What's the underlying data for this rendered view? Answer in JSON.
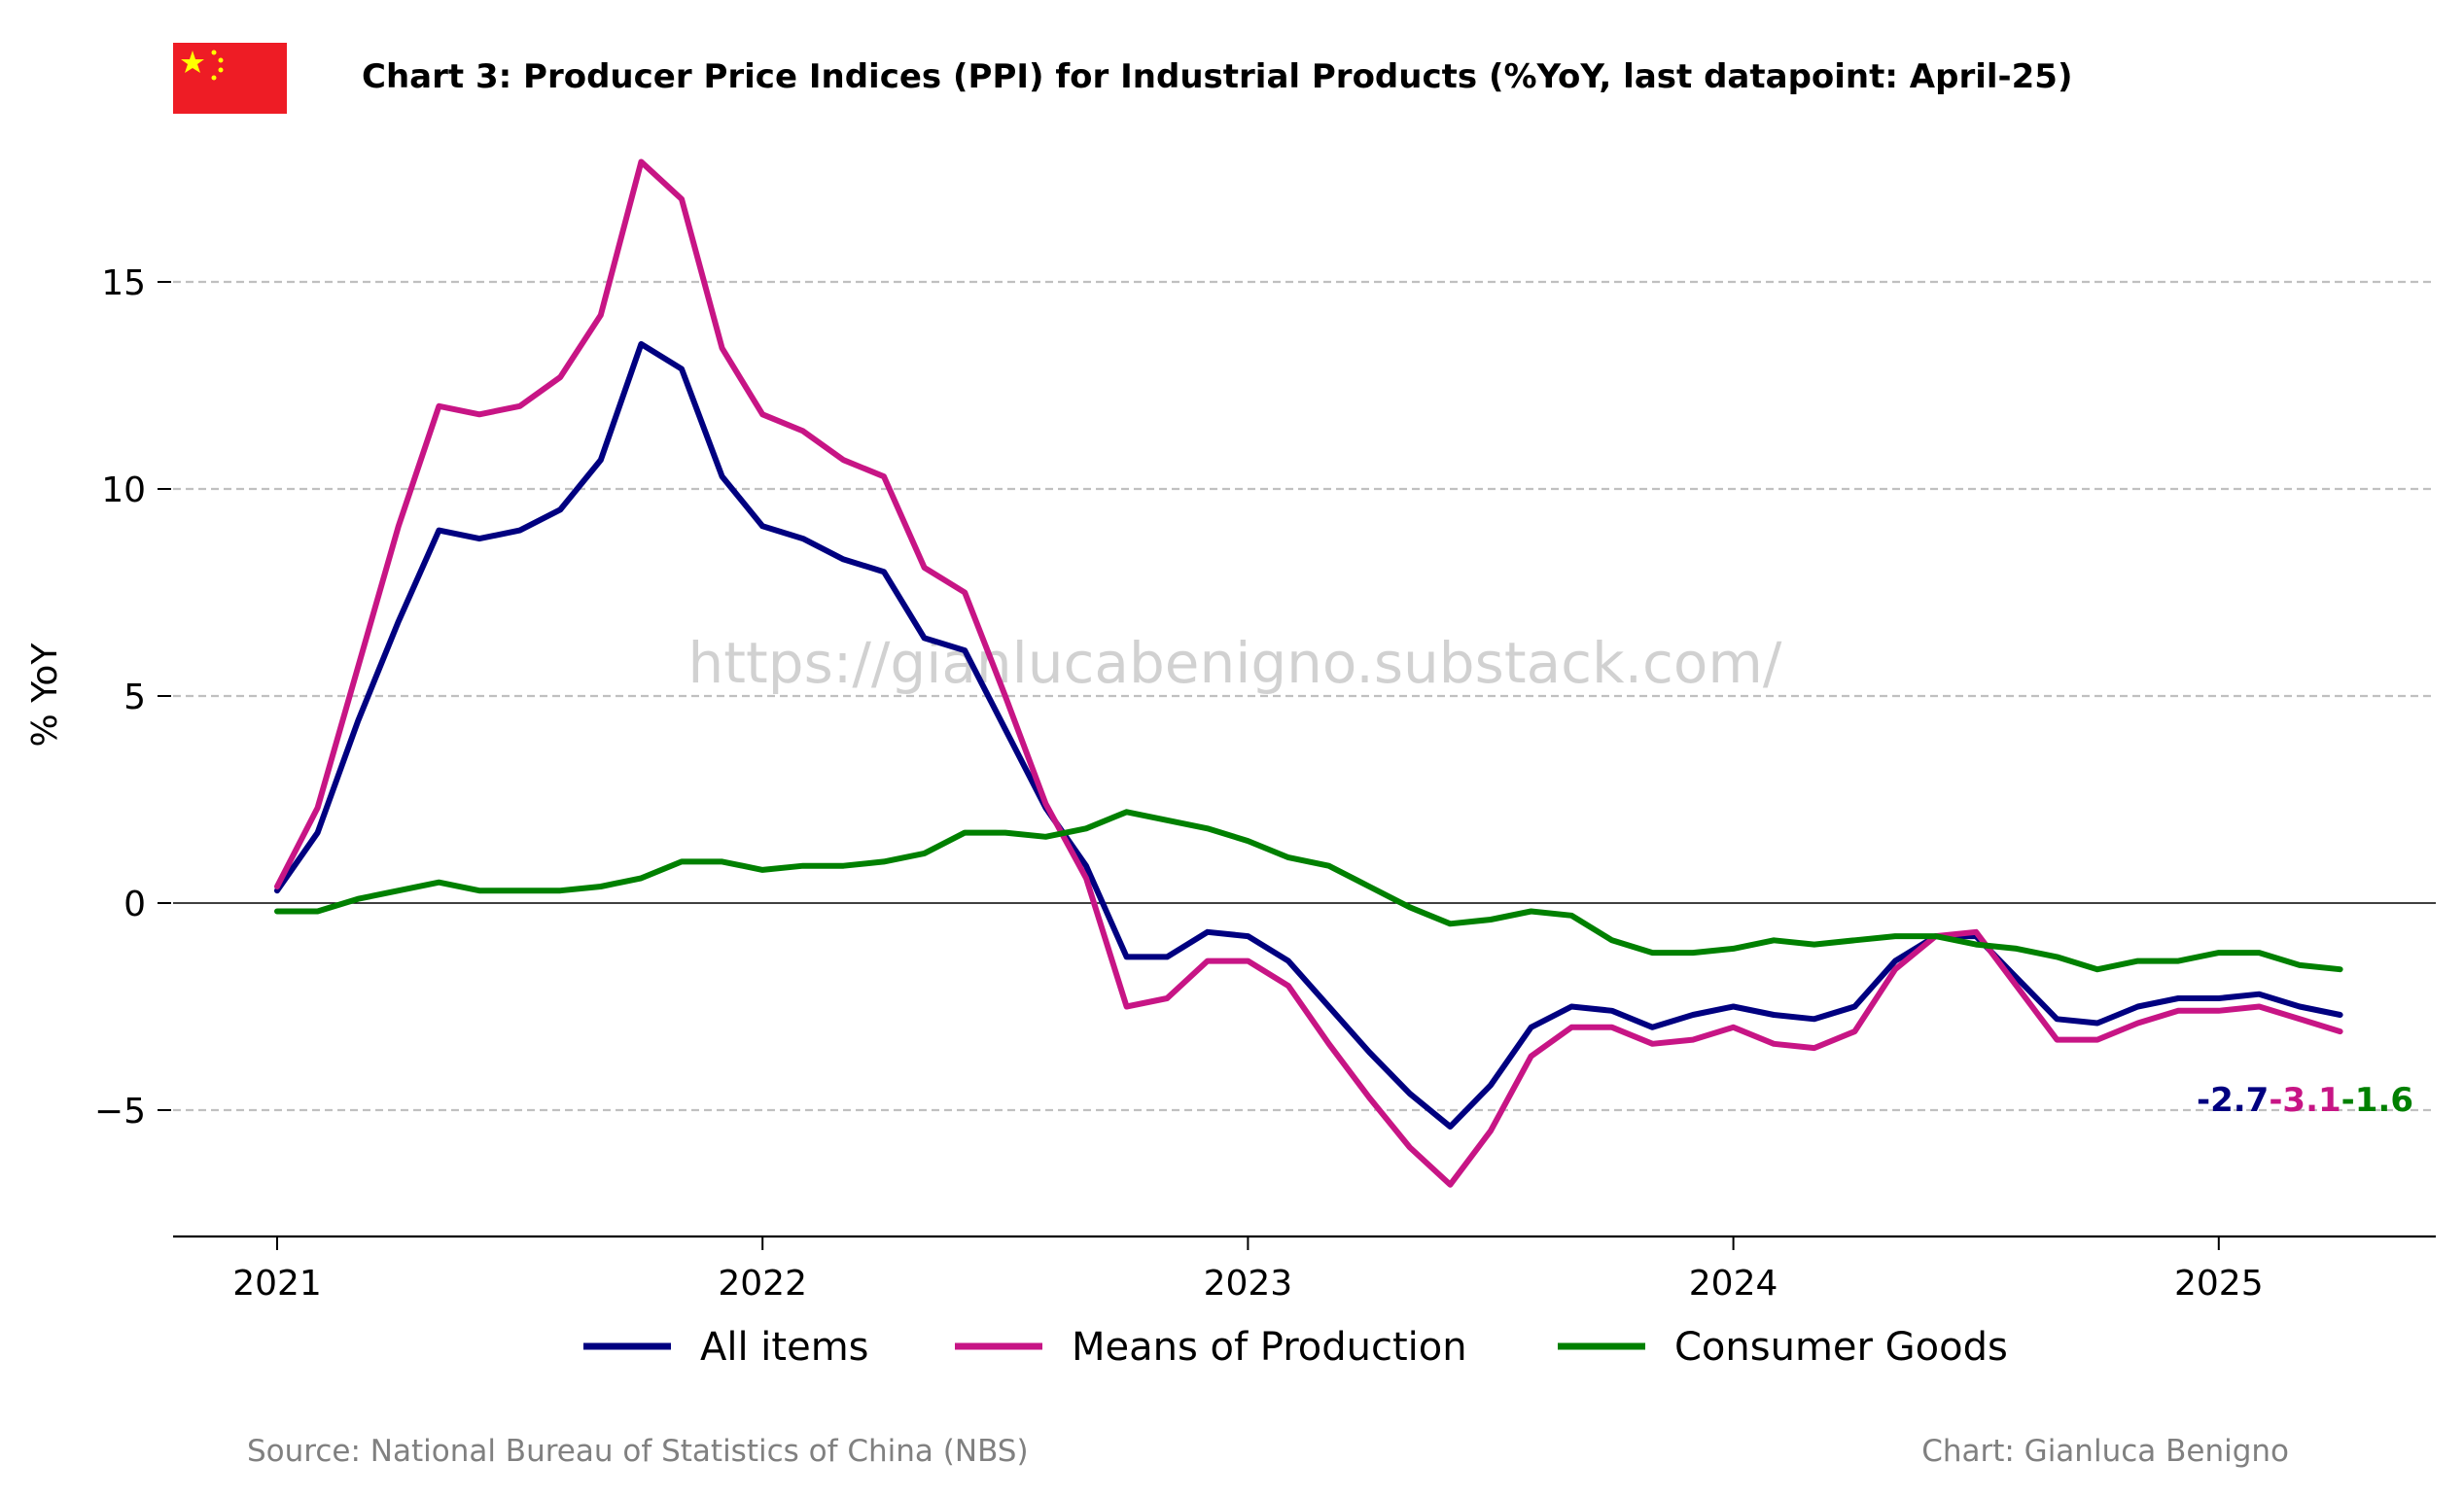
{
  "title": "Chart 3: Producer Price Indices (PPI) for Industrial Products (%YoY, last datapoint: April-25)",
  "watermark": "https://gianlucabenigno.substack.com/",
  "source": "Source: National Bureau of Statistics of China (NBS)",
  "credit": "Chart: Gianluca Benigno",
  "flag": {
    "country": "China",
    "icon": "china-flag-icon",
    "colors": {
      "field": "#ee1c25",
      "star": "#ffff00"
    }
  },
  "chart_data": {
    "type": "line",
    "title": "Chart 3: Producer Price Indices (PPI) for Industrial Products (%YoY, last datapoint: April-25)",
    "xlabel": "",
    "ylabel": "% YoY",
    "x_start": "2021-01",
    "x_end": "2025-04",
    "x_frequency": "monthly",
    "xticks": [
      "2021",
      "2022",
      "2023",
      "2024",
      "2025"
    ],
    "yticks": [
      15,
      10,
      5,
      0,
      -5
    ],
    "ytick_labels": [
      "15",
      "10",
      "5",
      "0",
      "−5"
    ],
    "ylim": [
      -8,
      18.5
    ],
    "grid": "horizontal dashed",
    "zero_line": true,
    "legend_position": "bottom-center",
    "series": [
      {
        "name": "All items",
        "color": "#000080",
        "end_label": "-2.7",
        "values": [
          0.3,
          1.7,
          4.4,
          6.8,
          9.0,
          8.8,
          9.0,
          9.5,
          10.7,
          13.5,
          12.9,
          10.3,
          9.1,
          8.8,
          8.3,
          8.0,
          6.4,
          6.1,
          4.2,
          2.3,
          0.9,
          -1.3,
          -1.3,
          -0.7,
          -0.8,
          -1.4,
          -2.5,
          -3.6,
          -4.6,
          -5.4,
          -4.4,
          -3.0,
          -2.5,
          -2.6,
          -3.0,
          -2.7,
          -2.5,
          -2.7,
          -2.8,
          -2.5,
          -1.4,
          -0.8,
          -0.8,
          -1.8,
          -2.8,
          -2.9,
          -2.5,
          -2.3,
          -2.3,
          -2.2,
          -2.5,
          -2.7
        ]
      },
      {
        "name": "Means of Production",
        "color": "#c71585",
        "end_label": "-3.1",
        "values": [
          0.4,
          2.3,
          5.7,
          9.1,
          12.0,
          11.8,
          12.0,
          12.7,
          14.2,
          17.9,
          17.0,
          13.4,
          11.8,
          11.4,
          10.7,
          10.3,
          8.1,
          7.5,
          5.0,
          2.4,
          0.6,
          -2.5,
          -2.3,
          -1.4,
          -1.4,
          -2.0,
          -3.4,
          -4.7,
          -5.9,
          -6.8,
          -5.5,
          -3.7,
          -3.0,
          -3.0,
          -3.4,
          -3.3,
          -3.0,
          -3.4,
          -3.5,
          -3.1,
          -1.6,
          -0.8,
          -0.7,
          -2.0,
          -3.3,
          -3.3,
          -2.9,
          -2.6,
          -2.6,
          -2.5,
          -2.8,
          -3.1
        ]
      },
      {
        "name": "Consumer Goods",
        "color": "#008000",
        "end_label": "-1.6",
        "values": [
          -0.2,
          -0.2,
          0.1,
          0.3,
          0.5,
          0.3,
          0.3,
          0.3,
          0.4,
          0.6,
          1.0,
          1.0,
          0.8,
          0.9,
          0.9,
          1.0,
          1.2,
          1.7,
          1.7,
          1.6,
          1.8,
          2.2,
          2.0,
          1.8,
          1.5,
          1.1,
          0.9,
          0.4,
          -0.1,
          -0.5,
          -0.4,
          -0.2,
          -0.3,
          -0.9,
          -1.2,
          -1.2,
          -1.1,
          -0.9,
          -1.0,
          -0.9,
          -0.8,
          -0.8,
          -1.0,
          -1.1,
          -1.3,
          -1.6,
          -1.4,
          -1.4,
          -1.2,
          -1.2,
          -1.5,
          -1.6
        ]
      }
    ]
  }
}
